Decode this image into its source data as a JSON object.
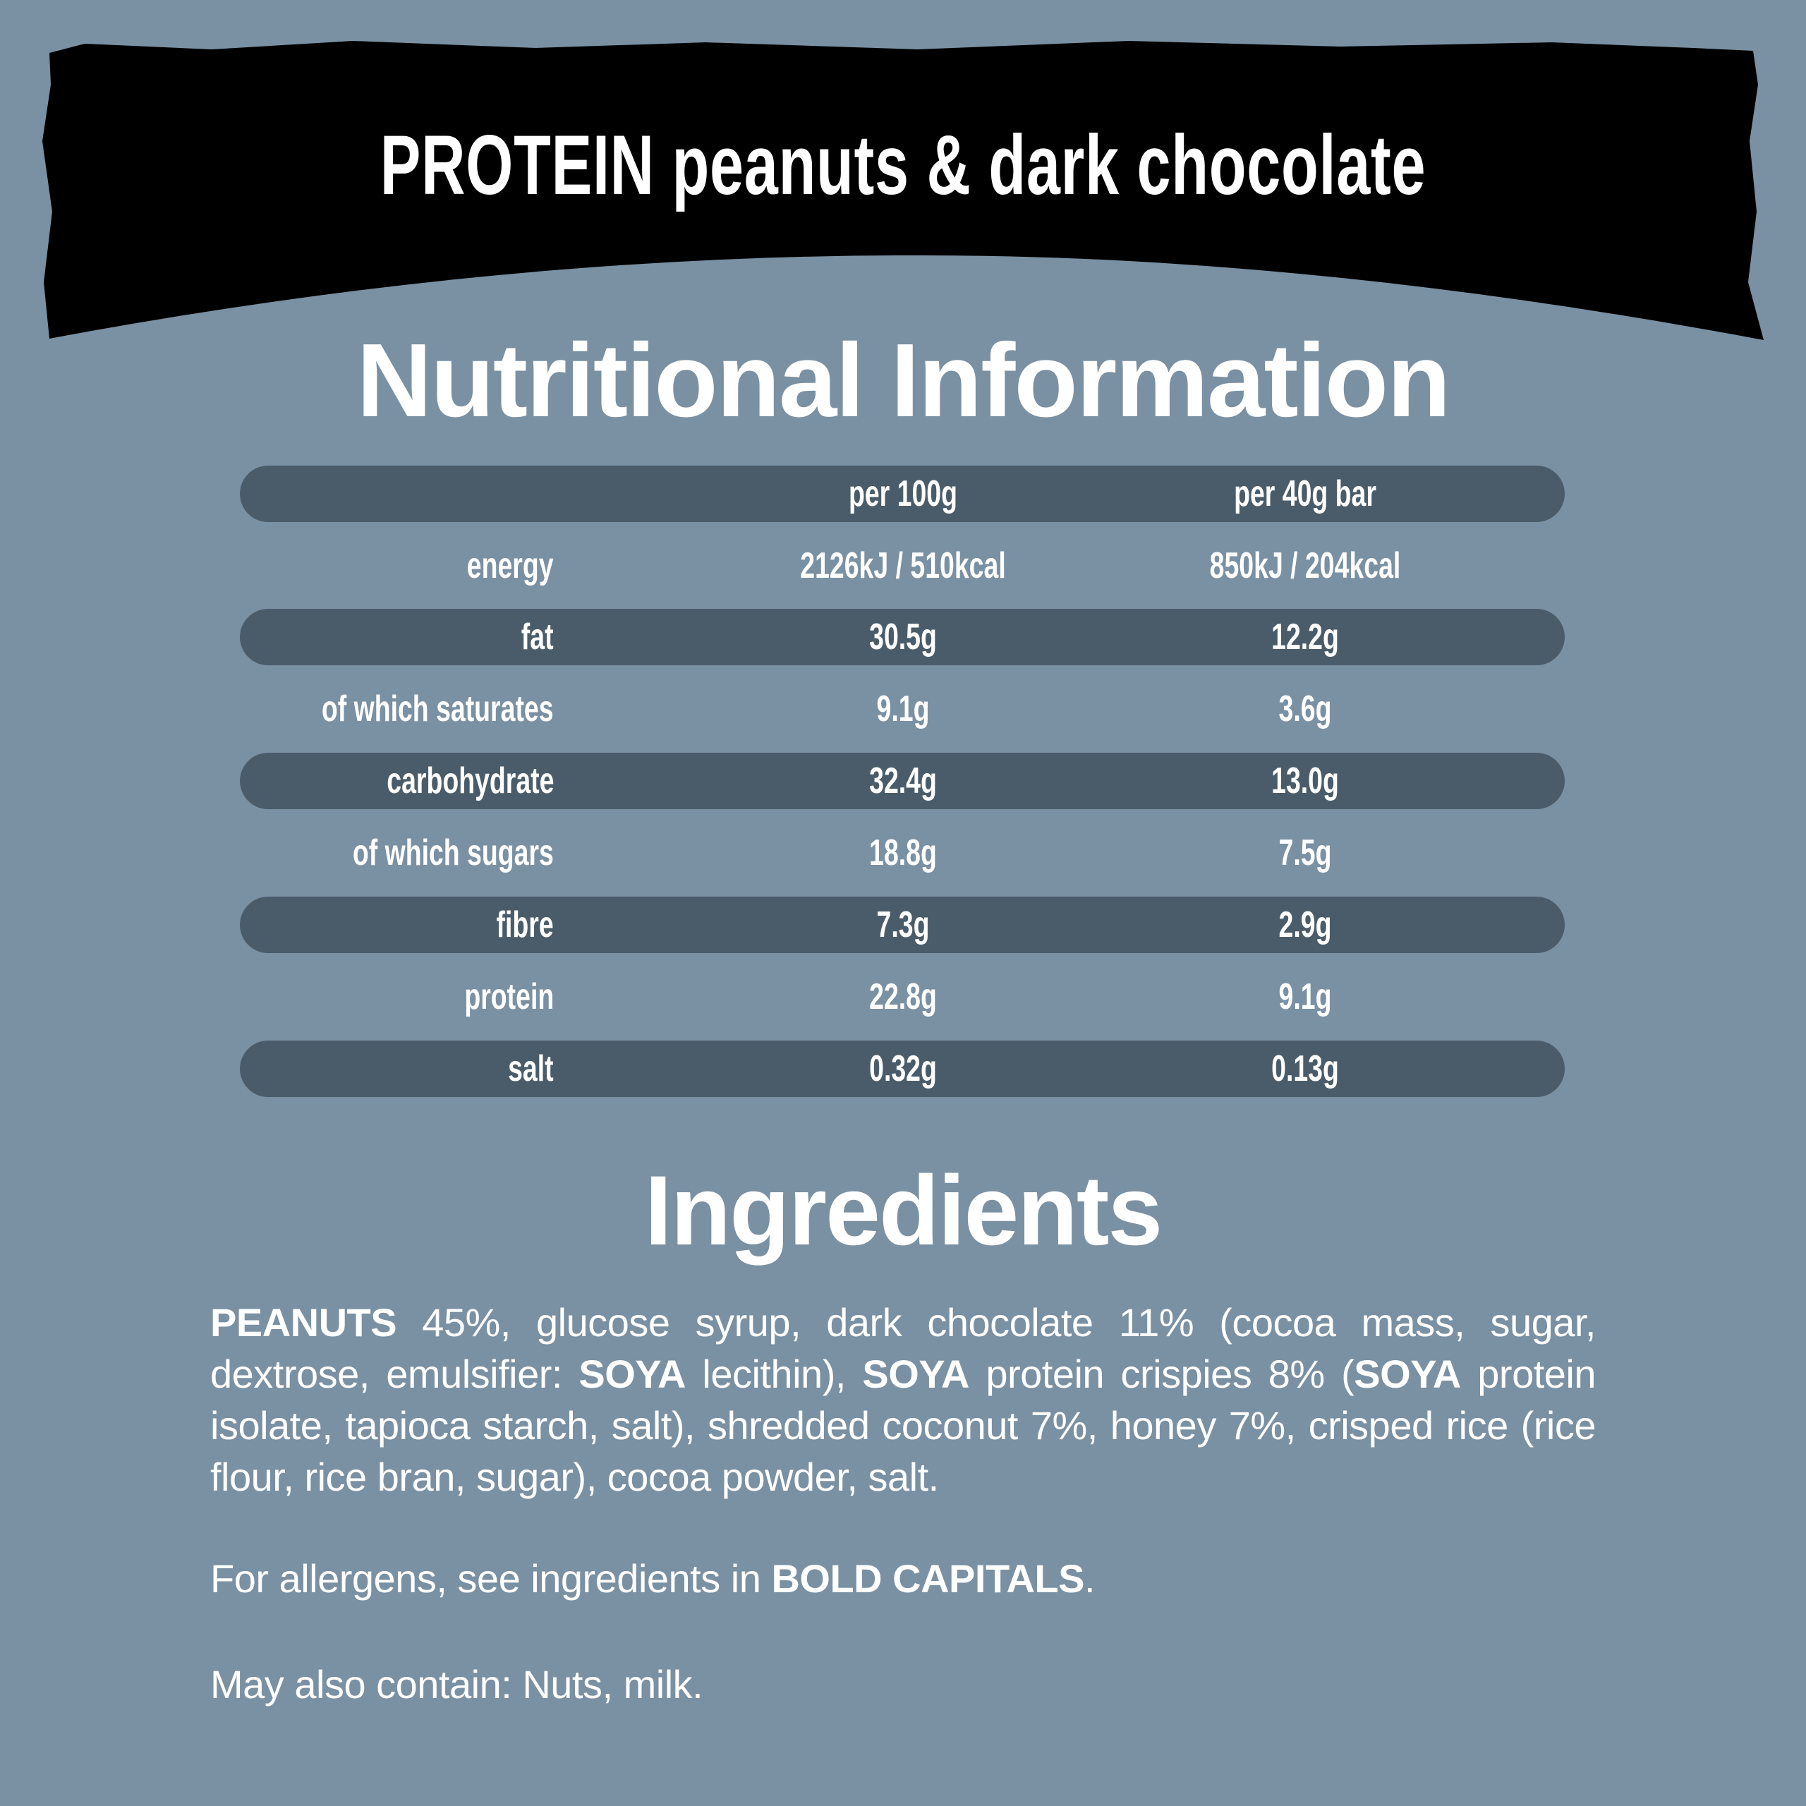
{
  "product": {
    "title_strong": "PROTEIN",
    "title_rest": "peanuts & dark chocolate"
  },
  "nutrition": {
    "heading": "Nutritional Information",
    "columns": [
      "",
      "per 100g",
      "per 40g bar"
    ],
    "rows": [
      {
        "label": "energy",
        "per_100g": "2126kJ / 510kcal",
        "per_bar": "850kJ / 204kcal"
      },
      {
        "label": "fat",
        "per_100g": "30.5g",
        "per_bar": "12.2g"
      },
      {
        "label": "of which saturates",
        "per_100g": "9.1g",
        "per_bar": "3.6g"
      },
      {
        "label": "carbohydrate",
        "per_100g": "32.4g",
        "per_bar": "13.0g"
      },
      {
        "label": "of which sugars",
        "per_100g": "18.8g",
        "per_bar": "7.5g"
      },
      {
        "label": "fibre",
        "per_100g": "7.3g",
        "per_bar": "2.9g"
      },
      {
        "label": "protein",
        "per_100g": "22.8g",
        "per_bar": "9.1g"
      },
      {
        "label": "salt",
        "per_100g": "0.32g",
        "per_bar": "0.13g"
      }
    ]
  },
  "ingredients": {
    "heading": "Ingredients",
    "segments": [
      {
        "text": "PEANUTS",
        "bold": true
      },
      {
        "text": " 45%, glucose syrup, dark chocolate 11% (cocoa mass, sugar, dextrose, emulsifier: ",
        "bold": false
      },
      {
        "text": "SOYA",
        "bold": true
      },
      {
        "text": " lecithin), ",
        "bold": false
      },
      {
        "text": "SOYA",
        "bold": true
      },
      {
        "text": " protein crispies 8% (",
        "bold": false
      },
      {
        "text": "SOYA",
        "bold": true
      },
      {
        "text": " protein isolate, tapioca starch, salt), shredded coconut 7%, honey 7%, crisped rice (rice flour, rice bran, sugar), cocoa powder, salt.",
        "bold": false
      }
    ],
    "allergen_note_prefix": "For allergens, see ingredients in ",
    "allergen_note_bold": "BOLD CAPITALS",
    "allergen_note_suffix": ".",
    "may_contain": "May also contain: Nuts, milk."
  },
  "colors": {
    "background": "#7a90a3",
    "row_bar": "#4a5c69",
    "banner": "#000000",
    "text": "#ffffff"
  }
}
